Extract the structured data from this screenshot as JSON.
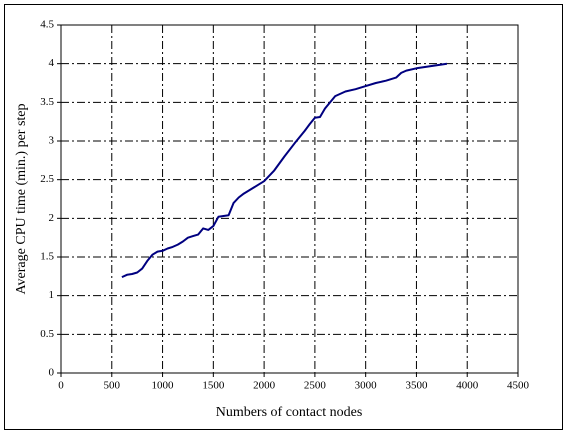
{
  "chart_data": {
    "type": "line",
    "x_label": "Numbers of contact nodes",
    "y_label": "Average CPU time (min.) per step",
    "x": [
      600,
      650,
      700,
      750,
      800,
      850,
      900,
      950,
      1000,
      1050,
      1100,
      1150,
      1200,
      1250,
      1300,
      1350,
      1400,
      1450,
      1500,
      1550,
      1600,
      1650,
      1700,
      1750,
      1800,
      1850,
      1900,
      1950,
      2000,
      2100,
      2200,
      2300,
      2400,
      2450,
      2500,
      2550,
      2600,
      2700,
      2800,
      2900,
      3000,
      3100,
      3200,
      3300,
      3350,
      3400,
      3500,
      3600,
      3700,
      3800
    ],
    "values": [
      1.24,
      1.27,
      1.28,
      1.3,
      1.35,
      1.45,
      1.53,
      1.57,
      1.58,
      1.61,
      1.63,
      1.66,
      1.7,
      1.75,
      1.77,
      1.79,
      1.87,
      1.85,
      1.9,
      2.02,
      2.03,
      2.04,
      2.2,
      2.27,
      2.32,
      2.36,
      2.4,
      2.44,
      2.48,
      2.62,
      2.8,
      2.97,
      3.13,
      3.22,
      3.3,
      3.31,
      3.42,
      3.58,
      3.64,
      3.67,
      3.71,
      3.75,
      3.78,
      3.82,
      3.88,
      3.91,
      3.94,
      3.96,
      3.98,
      4.0
    ],
    "color": "#000080",
    "xlim": [
      0,
      4500
    ],
    "xticks": [
      0,
      500,
      1000,
      1500,
      2000,
      2500,
      3000,
      3500,
      4000,
      4500
    ],
    "ylim": [
      0,
      4.5
    ],
    "yticks": [
      0,
      0.5,
      1,
      1.5,
      2,
      2.5,
      3,
      3.5,
      4,
      4.5
    ],
    "grid": true
  }
}
